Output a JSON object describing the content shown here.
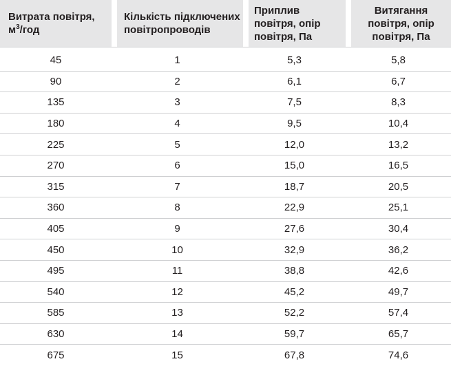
{
  "table": {
    "headers": {
      "airflow_line1": "Витрата повітря,",
      "airflow_unit_main": "м",
      "airflow_unit_sup": "3",
      "airflow_unit_rest": "/год",
      "ducts": "Кількість підключених повітропроводів",
      "supply": "Приплив повітря, опір повітря, Па",
      "extract": "Витягання повітря, опір повітря, Па"
    },
    "rows": [
      {
        "airflow": "45",
        "ducts": "1",
        "supply": "5,3",
        "extract": "5,8"
      },
      {
        "airflow": "90",
        "ducts": "2",
        "supply": "6,1",
        "extract": "6,7"
      },
      {
        "airflow": "135",
        "ducts": "3",
        "supply": "7,5",
        "extract": "8,3"
      },
      {
        "airflow": "180",
        "ducts": "4",
        "supply": "9,5",
        "extract": "10,4"
      },
      {
        "airflow": "225",
        "ducts": "5",
        "supply": "12,0",
        "extract": "13,2"
      },
      {
        "airflow": "270",
        "ducts": "6",
        "supply": "15,0",
        "extract": "16,5"
      },
      {
        "airflow": "315",
        "ducts": "7",
        "supply": "18,7",
        "extract": "20,5"
      },
      {
        "airflow": "360",
        "ducts": "8",
        "supply": "22,9",
        "extract": "25,1"
      },
      {
        "airflow": "405",
        "ducts": "9",
        "supply": "27,6",
        "extract": "30,4"
      },
      {
        "airflow": "450",
        "ducts": "10",
        "supply": "32,9",
        "extract": "36,2"
      },
      {
        "airflow": "495",
        "ducts": "11",
        "supply": "38,8",
        "extract": "42,6"
      },
      {
        "airflow": "540",
        "ducts": "12",
        "supply": "45,2",
        "extract": "49,7"
      },
      {
        "airflow": "585",
        "ducts": "13",
        "supply": "52,2",
        "extract": "57,4"
      },
      {
        "airflow": "630",
        "ducts": "14",
        "supply": "59,7",
        "extract": "65,7"
      },
      {
        "airflow": "675",
        "ducts": "15",
        "supply": "67,8",
        "extract": "74,6"
      }
    ]
  }
}
